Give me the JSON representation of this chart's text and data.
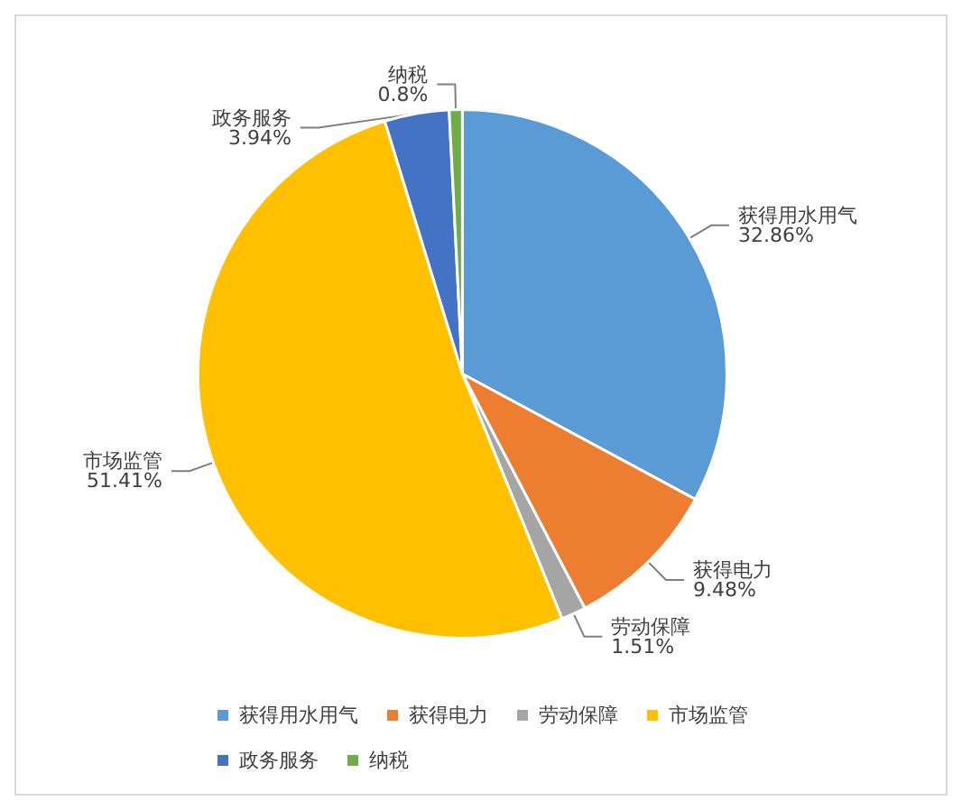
{
  "chart_data": {
    "type": "pie",
    "categories": [
      "获得用水用气",
      "获得电力",
      "劳动保障",
      "市场监管",
      "政务服务",
      "纳税"
    ],
    "values": [
      32.86,
      9.48,
      1.51,
      51.41,
      3.94,
      0.8
    ],
    "colors": [
      "#5b9bd5",
      "#ed7d31",
      "#a5a5a5",
      "#ffc000",
      "#4472c4",
      "#70ad47"
    ],
    "value_labels": [
      "32.86%",
      "9.48%",
      "1.51%",
      "51.41%",
      "3.94%",
      "0.8%"
    ],
    "legend": "bottom"
  }
}
